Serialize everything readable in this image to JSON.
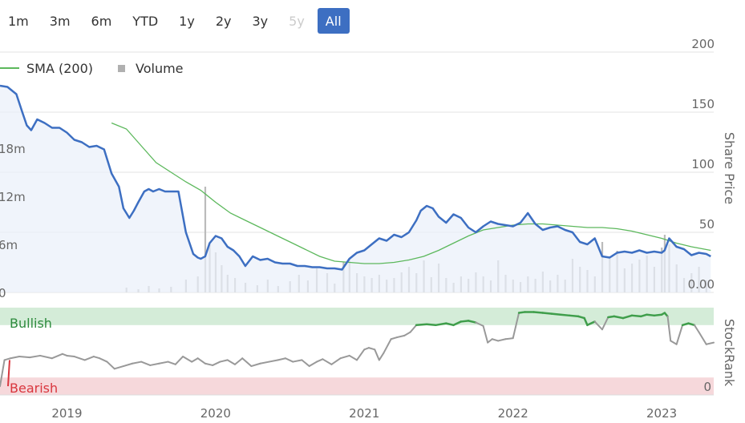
{
  "range_buttons": [
    {
      "label": "1m",
      "state": "normal"
    },
    {
      "label": "3m",
      "state": "normal"
    },
    {
      "label": "6m",
      "state": "normal"
    },
    {
      "label": "YTD",
      "state": "normal"
    },
    {
      "label": "1y",
      "state": "normal"
    },
    {
      "label": "2y",
      "state": "normal"
    },
    {
      "label": "3y",
      "state": "normal"
    },
    {
      "label": "5y",
      "state": "disabled"
    },
    {
      "label": "All",
      "state": "active"
    }
  ],
  "chart_data": {
    "type": "line",
    "legend": [
      {
        "label": "SMA (200)",
        "color": "#5cb85c",
        "marker": "line"
      },
      {
        "label": "Volume",
        "color": "#b0b0b0",
        "marker": "square"
      }
    ],
    "legend_position": "top-left",
    "colors": {
      "price": "#3d6fc2",
      "sma": "#5cb85c",
      "volume": "#bbbbbb",
      "stockrank": "#999999",
      "stockrank_bullish": "#3f9e4b",
      "bullish_band": "#d4ecd8",
      "bearish_band": "#f6d8db",
      "bullish_text": "#2e8b3e",
      "bearish_text": "#d9363e"
    },
    "x_ticks": [
      "2019",
      "2020",
      "2021",
      "2022",
      "2023"
    ],
    "x_range": [
      2018.55,
      2023.35
    ],
    "price_panel": {
      "ylabel": "Share Price",
      "y_ticks": [
        "200",
        "150",
        "100",
        "50",
        "0.00"
      ],
      "ylim": [
        0,
        200
      ],
      "grid": true,
      "volume_ticks": [
        "18m",
        "12m",
        "6m",
        "0"
      ],
      "volume_ylim": [
        0,
        30
      ],
      "price": {
        "name": "Share Price",
        "x": [
          2018.55,
          2018.6,
          2018.66,
          2018.7,
          2018.73,
          2018.76,
          2018.8,
          2018.85,
          2018.9,
          2018.95,
          2019.0,
          2019.05,
          2019.1,
          2019.15,
          2019.2,
          2019.25,
          2019.3,
          2019.35,
          2019.38,
          2019.42,
          2019.45,
          2019.48,
          2019.52,
          2019.55,
          2019.58,
          2019.62,
          2019.66,
          2019.7,
          2019.75,
          2019.8,
          2019.85,
          2019.88,
          2019.9,
          2019.93,
          2019.96,
          2020.0,
          2020.04,
          2020.08,
          2020.12,
          2020.16,
          2020.2,
          2020.25,
          2020.3,
          2020.35,
          2020.4,
          2020.45,
          2020.5,
          2020.55,
          2020.6,
          2020.65,
          2020.7,
          2020.75,
          2020.8,
          2020.85,
          2020.9,
          2020.95,
          2021.0,
          2021.05,
          2021.1,
          2021.15,
          2021.2,
          2021.25,
          2021.3,
          2021.35,
          2021.38,
          2021.42,
          2021.46,
          2021.5,
          2021.55,
          2021.6,
          2021.65,
          2021.7,
          2021.75,
          2021.8,
          2021.85,
          2021.9,
          2021.95,
          2022.0,
          2022.05,
          2022.1,
          2022.15,
          2022.2,
          2022.25,
          2022.3,
          2022.35,
          2022.4,
          2022.45,
          2022.5,
          2022.55,
          2022.6,
          2022.65,
          2022.7,
          2022.75,
          2022.8,
          2022.85,
          2022.9,
          2022.95,
          2023.0,
          2023.02,
          2023.05,
          2023.1,
          2023.15,
          2023.2,
          2023.25,
          2023.3,
          2023.33
        ],
        "y": [
          172,
          171,
          165,
          150,
          139,
          135,
          144,
          141,
          137,
          137,
          133,
          127,
          125,
          121,
          122,
          119,
          99,
          88,
          70,
          62,
          68,
          75,
          84,
          86,
          84,
          86,
          84,
          84,
          84,
          50,
          32,
          29,
          28,
          30,
          41,
          47,
          45,
          38,
          35,
          30,
          22,
          30,
          27,
          28,
          25,
          24,
          24,
          22,
          22,
          21,
          21,
          20,
          20,
          19,
          28,
          33,
          35,
          40,
          45,
          43,
          48,
          46,
          50,
          60,
          68,
          72,
          70,
          63,
          58,
          65,
          62,
          54,
          50,
          55,
          59,
          57,
          56,
          55,
          58,
          66,
          57,
          52,
          54,
          55,
          52,
          50,
          42,
          40,
          45,
          30,
          29,
          33,
          34,
          33,
          35,
          33,
          34,
          33,
          35,
          45,
          38,
          36,
          31,
          33,
          32,
          30
        ]
      },
      "sma": {
        "name": "SMA (200)",
        "x": [
          2019.3,
          2019.4,
          2019.5,
          2019.6,
          2019.7,
          2019.8,
          2019.9,
          2020.0,
          2020.1,
          2020.2,
          2020.3,
          2020.4,
          2020.5,
          2020.6,
          2020.7,
          2020.8,
          2020.9,
          2021.0,
          2021.1,
          2021.2,
          2021.3,
          2021.4,
          2021.5,
          2021.6,
          2021.7,
          2021.8,
          2021.9,
          2022.0,
          2022.1,
          2022.2,
          2022.3,
          2022.4,
          2022.5,
          2022.6,
          2022.7,
          2022.8,
          2022.9,
          2023.0,
          2023.1,
          2023.2,
          2023.33
        ],
        "y": [
          141,
          136,
          122,
          108,
          100,
          92,
          85,
          75,
          66,
          60,
          54,
          48,
          42,
          36,
          30,
          26,
          25,
          24,
          24,
          25,
          27,
          30,
          35,
          41,
          47,
          52,
          54,
          56,
          57,
          57,
          56,
          55,
          54,
          54,
          53,
          51,
          48,
          45,
          41,
          38,
          35
        ]
      },
      "volume": {
        "name": "Volume",
        "x": [
          2019.4,
          2019.48,
          2019.55,
          2019.62,
          2019.7,
          2019.8,
          2019.88,
          2019.93,
          2019.96,
          2020.0,
          2020.04,
          2020.08,
          2020.13,
          2020.2,
          2020.28,
          2020.35,
          2020.42,
          2020.5,
          2020.56,
          2020.62,
          2020.68,
          2020.75,
          2020.8,
          2020.86,
          2020.9,
          2020.95,
          2021.0,
          2021.05,
          2021.1,
          2021.15,
          2021.2,
          2021.25,
          2021.3,
          2021.35,
          2021.4,
          2021.45,
          2021.5,
          2021.55,
          2021.6,
          2021.65,
          2021.7,
          2021.75,
          2021.8,
          2021.85,
          2021.9,
          2021.95,
          2022.0,
          2022.05,
          2022.1,
          2022.15,
          2022.2,
          2022.25,
          2022.3,
          2022.35,
          2022.4,
          2022.45,
          2022.5,
          2022.55,
          2022.6,
          2022.65,
          2022.7,
          2022.75,
          2022.8,
          2022.85,
          2022.9,
          2022.95,
          2023.0,
          2023.02,
          2023.05,
          2023.1,
          2023.15,
          2023.2,
          2023.25,
          2023.3
        ],
        "y": [
          0.6,
          0.4,
          0.8,
          0.5,
          0.7,
          1.6,
          2.0,
          13.2,
          6.0,
          5.0,
          3.4,
          2.2,
          1.8,
          1.2,
          0.9,
          1.6,
          0.8,
          1.4,
          2.2,
          1.5,
          3.0,
          2.4,
          1.1,
          3.8,
          4.0,
          2.4,
          2.0,
          1.8,
          2.2,
          1.6,
          1.8,
          2.5,
          3.2,
          2.4,
          4.0,
          1.9,
          3.6,
          1.8,
          1.2,
          2.0,
          1.7,
          2.5,
          2.0,
          1.5,
          4.0,
          2.2,
          1.6,
          1.3,
          2.0,
          1.7,
          2.6,
          1.5,
          2.2,
          1.6,
          4.2,
          3.2,
          2.8,
          2.0,
          6.3,
          4.5,
          5.2,
          3.0,
          3.6,
          4.1,
          4.6,
          3.2,
          5.6,
          7.2,
          6.0,
          3.5,
          1.8,
          2.4,
          3.2,
          1.5
        ]
      }
    },
    "stockrank_panel": {
      "ylabel": "StockRank",
      "y_ticks": [
        "0"
      ],
      "ylim": [
        0,
        100
      ],
      "bullish_threshold": 80,
      "bearish_threshold": 20,
      "bullish_label": "Bullish",
      "bearish_label": "Bearish",
      "x": [
        2018.55,
        2018.58,
        2018.62,
        2018.68,
        2018.75,
        2018.82,
        2018.9,
        2018.97,
        2019.0,
        2019.05,
        2019.12,
        2019.18,
        2019.22,
        2019.27,
        2019.32,
        2019.38,
        2019.44,
        2019.5,
        2019.56,
        2019.62,
        2019.68,
        2019.73,
        2019.78,
        2019.84,
        2019.88,
        2019.93,
        2019.98,
        2020.03,
        2020.08,
        2020.13,
        2020.18,
        2020.24,
        2020.3,
        2020.36,
        2020.42,
        2020.47,
        2020.52,
        2020.58,
        2020.63,
        2020.68,
        2020.72,
        2020.78,
        2020.84,
        2020.9,
        2020.95,
        2021.0,
        2021.03,
        2021.07,
        2021.1,
        2021.13,
        2021.18,
        2021.22,
        2021.27,
        2021.31,
        2021.35,
        2021.42,
        2021.48,
        2021.55,
        2021.6,
        2021.65,
        2021.7,
        2021.75,
        2021.8,
        2021.83,
        2021.86,
        2021.9,
        2021.95,
        2022.0,
        2022.04,
        2022.08,
        2022.14,
        2022.2,
        2022.26,
        2022.32,
        2022.38,
        2022.44,
        2022.48,
        2022.5,
        2022.55,
        2022.6,
        2022.64,
        2022.68,
        2022.74,
        2022.8,
        2022.86,
        2022.9,
        2022.95,
        2023.0,
        2023.02,
        2023.04,
        2023.06,
        2023.1,
        2023.14,
        2023.18,
        2023.22,
        2023.25,
        2023.3,
        2023.35
      ],
      "y": [
        10,
        40,
        42,
        44,
        43,
        45,
        42,
        47,
        45,
        44,
        40,
        44,
        42,
        38,
        30,
        33,
        36,
        38,
        34,
        36,
        38,
        35,
        44,
        38,
        42,
        36,
        34,
        38,
        40,
        35,
        42,
        33,
        36,
        38,
        40,
        42,
        38,
        40,
        33,
        38,
        41,
        35,
        42,
        45,
        40,
        52,
        54,
        52,
        40,
        48,
        64,
        66,
        68,
        72,
        80,
        81,
        80,
        82,
        80,
        84,
        85,
        83,
        79,
        60,
        64,
        62,
        64,
        65,
        94,
        95,
        95,
        94,
        93,
        92,
        91,
        90,
        88,
        80,
        84,
        75,
        89,
        90,
        88,
        91,
        90,
        92,
        91,
        92,
        94,
        90,
        62,
        58,
        80,
        82,
        80,
        72,
        58,
        60
      ]
    }
  }
}
